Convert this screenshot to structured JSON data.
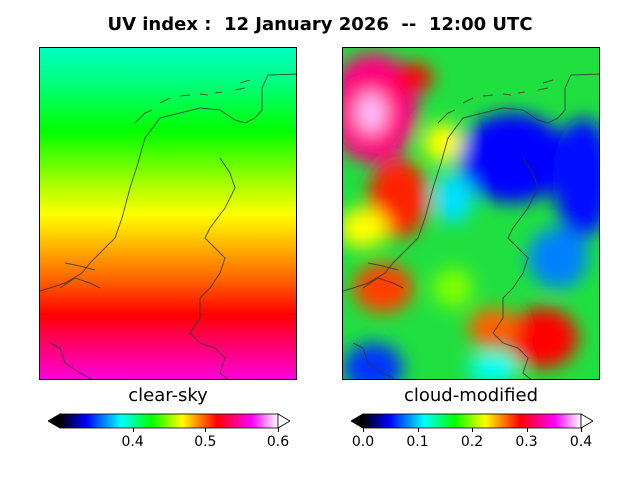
{
  "title": "UV index :  12 January 2026  --  12:00 UTC",
  "panels": [
    {
      "label": "clear-sky",
      "colorbar": {
        "ticks": [
          "0.4",
          "0.5",
          "0.6"
        ],
        "range": [
          0.3,
          0.6
        ],
        "tick_values": [
          0.4,
          0.5,
          0.6
        ]
      }
    },
    {
      "label": "cloud-modified",
      "colorbar": {
        "ticks": [
          "0.0",
          "0.1",
          "0.2",
          "0.3",
          "0.4"
        ],
        "range": [
          0.0,
          0.4
        ],
        "tick_values": [
          0.0,
          0.1,
          0.2,
          0.3,
          0.4
        ]
      }
    }
  ],
  "colors": {
    "colormap": [
      "#000000",
      "#0000ff",
      "#00ffff",
      "#00ff00",
      "#ffff00",
      "#ff0000",
      "#ff00ff",
      "#ffffff"
    ]
  }
}
